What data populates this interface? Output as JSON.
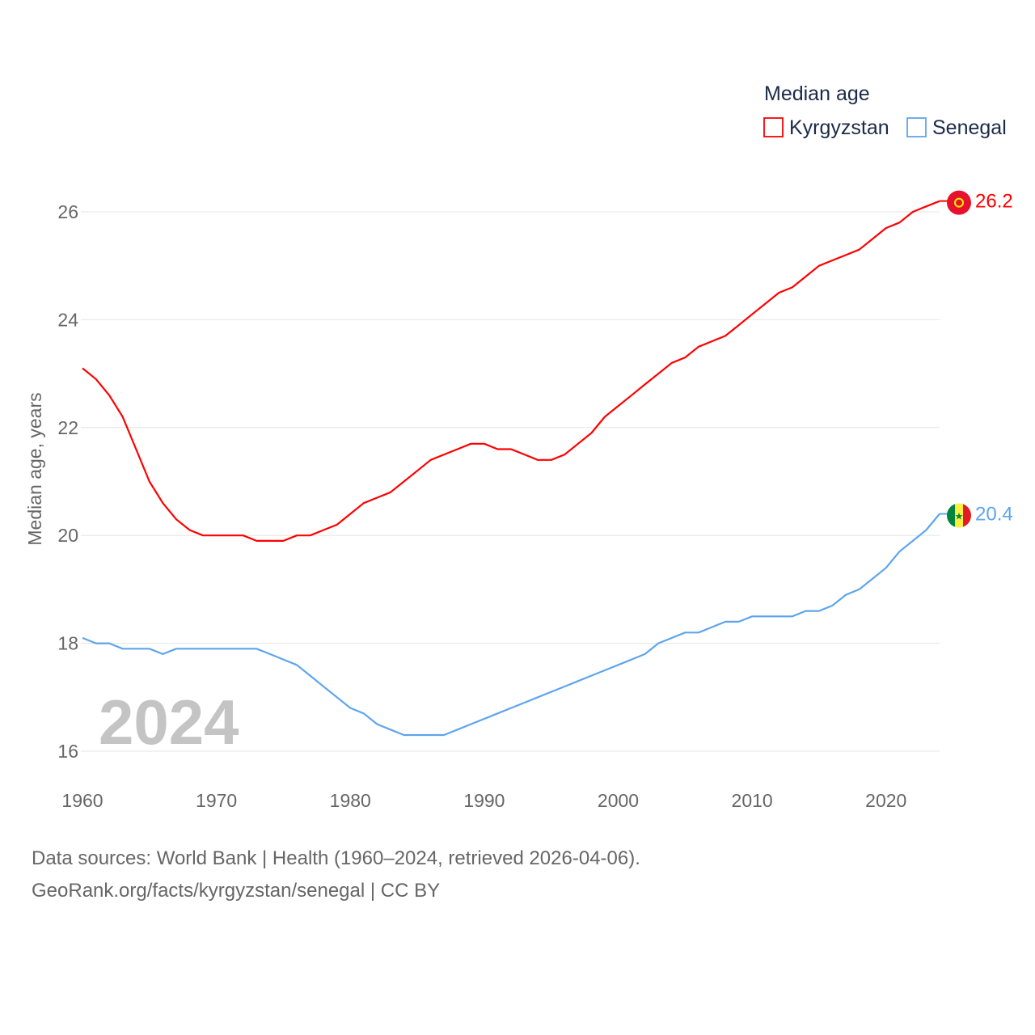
{
  "chart_data": {
    "type": "line",
    "title": "",
    "legend_title": "Median age",
    "legend_placement": "top-right",
    "xlabel": "",
    "ylabel": "Median age, years",
    "xlim": [
      1960,
      2024
    ],
    "ylim": [
      16,
      26.2
    ],
    "x_ticks": [
      "1960",
      "1970",
      "1980",
      "1990",
      "2000",
      "2010",
      "2020"
    ],
    "y_ticks": [
      "16",
      "18",
      "20",
      "22",
      "24",
      "26"
    ],
    "grid": true,
    "year_label": "2024",
    "x": [
      1960,
      1961,
      1962,
      1963,
      1964,
      1965,
      1966,
      1967,
      1968,
      1969,
      1970,
      1971,
      1972,
      1973,
      1974,
      1975,
      1976,
      1977,
      1978,
      1979,
      1980,
      1981,
      1982,
      1983,
      1984,
      1985,
      1986,
      1987,
      1988,
      1989,
      1990,
      1991,
      1992,
      1993,
      1994,
      1995,
      1996,
      1997,
      1998,
      1999,
      2000,
      2001,
      2002,
      2003,
      2004,
      2005,
      2006,
      2007,
      2008,
      2009,
      2010,
      2011,
      2012,
      2013,
      2014,
      2015,
      2016,
      2017,
      2018,
      2019,
      2020,
      2021,
      2022,
      2023,
      2024
    ],
    "series": [
      {
        "name": "Kyrgyzstan",
        "color": "#ff0000",
        "end_label": "26.2",
        "values": [
          23.1,
          22.9,
          22.6,
          22.2,
          21.6,
          21.0,
          20.6,
          20.3,
          20.1,
          20.0,
          20.0,
          20.0,
          20.0,
          19.9,
          19.9,
          19.9,
          20.0,
          20.0,
          20.1,
          20.2,
          20.4,
          20.6,
          20.7,
          20.8,
          21.0,
          21.2,
          21.4,
          21.5,
          21.6,
          21.7,
          21.7,
          21.6,
          21.6,
          21.5,
          21.4,
          21.4,
          21.5,
          21.7,
          21.9,
          22.2,
          22.4,
          22.6,
          22.8,
          23.0,
          23.2,
          23.3,
          23.5,
          23.6,
          23.7,
          23.9,
          24.1,
          24.3,
          24.5,
          24.6,
          24.8,
          25.0,
          25.1,
          25.2,
          25.3,
          25.5,
          25.7,
          25.8,
          26.0,
          26.1,
          26.2
        ]
      },
      {
        "name": "Senegal",
        "color": "#5ea5ec",
        "end_label": "20.4",
        "values": [
          18.1,
          18.0,
          18.0,
          17.9,
          17.9,
          17.9,
          17.8,
          17.9,
          17.9,
          17.9,
          17.9,
          17.9,
          17.9,
          17.9,
          17.8,
          17.7,
          17.6,
          17.4,
          17.2,
          17.0,
          16.8,
          16.7,
          16.5,
          16.4,
          16.3,
          16.3,
          16.3,
          16.3,
          16.4,
          16.5,
          16.6,
          16.7,
          16.8,
          16.9,
          17.0,
          17.1,
          17.2,
          17.3,
          17.4,
          17.5,
          17.6,
          17.7,
          17.8,
          18.0,
          18.1,
          18.2,
          18.2,
          18.3,
          18.4,
          18.4,
          18.5,
          18.5,
          18.5,
          18.5,
          18.6,
          18.6,
          18.7,
          18.9,
          19.0,
          19.2,
          19.4,
          19.7,
          19.9,
          20.1,
          20.4
        ]
      }
    ]
  },
  "footer": {
    "line1": "Data sources: World Bank | Health (1960–2024, retrieved 2026-04-06).",
    "line2": "GeoRank.org/facts/kyrgyzstan/senegal | CC BY"
  }
}
